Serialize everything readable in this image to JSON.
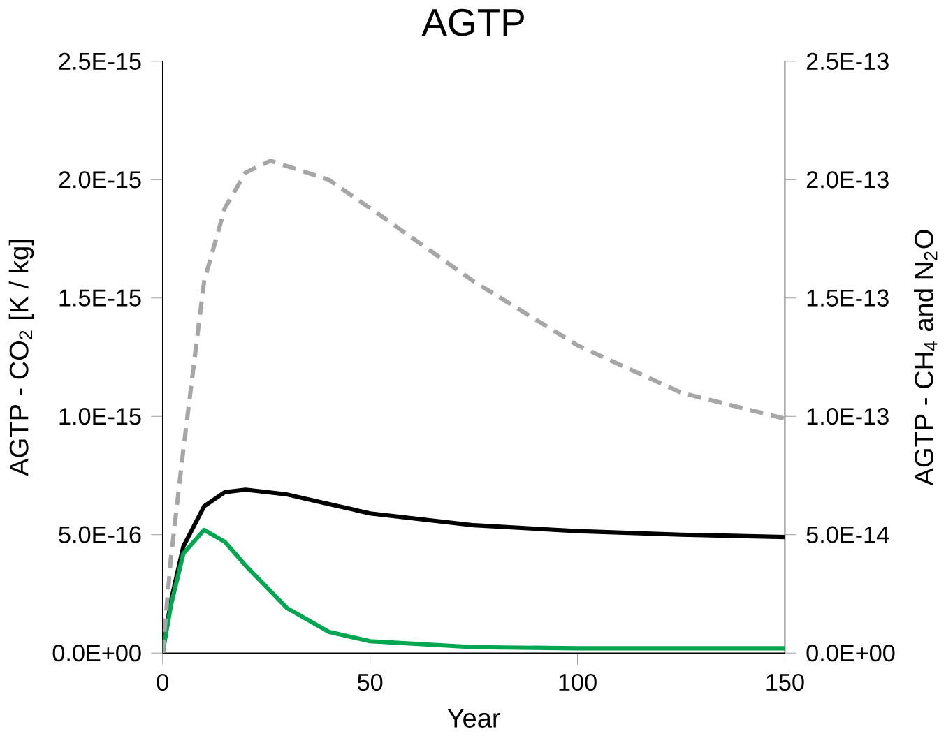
{
  "chart_data": {
    "type": "line",
    "title": "AGTP",
    "xlabel": "Year",
    "ylabel": "AGTP - CO$_{2}$ [K / kg]",
    "y2label": "AGTP - CH$_{4}$ and N$_{2}$O",
    "xlim": [
      0,
      150
    ],
    "xticks": [
      0,
      50,
      100,
      150
    ],
    "ylim": [
      0,
      2.5e-15
    ],
    "yticks": [
      {
        "value": 0,
        "label": "0.0E+00"
      },
      {
        "value": 5e-16,
        "label": "5.0E-16"
      },
      {
        "value": 1e-15,
        "label": "1.0E-15"
      },
      {
        "value": 1.5e-15,
        "label": "1.5E-15"
      },
      {
        "value": 2e-15,
        "label": "2.0E-15"
      },
      {
        "value": 2.5e-15,
        "label": "2.5E-15"
      }
    ],
    "y2lim": [
      0,
      2.5e-13
    ],
    "y2ticks": [
      {
        "value": 0,
        "label": "0.0E+00"
      },
      {
        "value": 5e-14,
        "label": "5.0E-14"
      },
      {
        "value": 1e-13,
        "label": "1.0E-13"
      },
      {
        "value": 1.5e-13,
        "label": "1.5E-13"
      },
      {
        "value": 2e-13,
        "label": "2.0E-13"
      },
      {
        "value": 2.5e-13,
        "label": "2.5E-13"
      }
    ],
    "grid": false,
    "series": [
      {
        "color": "#000000",
        "line_style": "solid",
        "axis": "y",
        "x": [
          0,
          2,
          5,
          10,
          15,
          20,
          30,
          40,
          50,
          75,
          100,
          125,
          150
        ],
        "values": [
          0,
          2.2e-16,
          4.5e-16,
          6.2e-16,
          6.8e-16,
          6.9e-16,
          6.7e-16,
          6.3e-16,
          5.9e-16,
          5.4e-16,
          5.15e-16,
          5e-16,
          4.9e-16
        ]
      },
      {
        "color": "#00a650",
        "line_style": "solid",
        "axis": "y2",
        "x": [
          0,
          2,
          5,
          10,
          15,
          20,
          30,
          40,
          50,
          75,
          100,
          125,
          150
        ],
        "values": [
          0,
          2e-14,
          4.2e-14,
          5.2e-14,
          4.7e-14,
          3.7e-14,
          1.9e-14,
          9e-15,
          5e-15,
          2.5e-15,
          2e-15,
          2e-15,
          2e-15
        ]
      },
      {
        "color": "#a6a6a6",
        "line_style": "dashed",
        "axis": "y2",
        "x": [
          0,
          2,
          5,
          10,
          15,
          20,
          26,
          40,
          50,
          75,
          100,
          125,
          150
        ],
        "values": [
          0,
          4e-14,
          8.6e-14,
          1.57e-13,
          1.88e-13,
          2.03e-13,
          2.08e-13,
          2e-13,
          1.88e-13,
          1.57e-13,
          1.3e-13,
          1.1e-13,
          9.9e-14
        ]
      }
    ]
  }
}
